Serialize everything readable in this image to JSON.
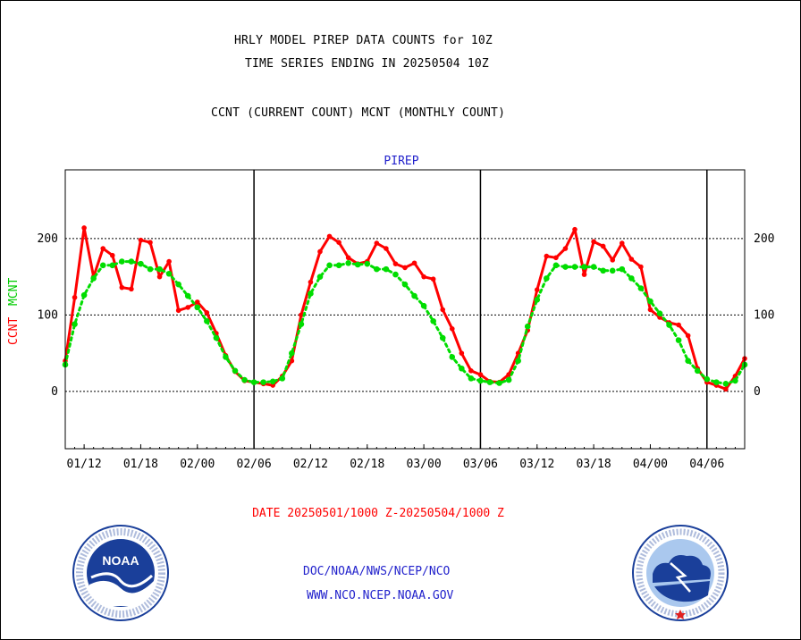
{
  "header": {
    "title_line1": "HRLY MODEL PIREP DATA COUNTS for 10Z",
    "title_line2": "TIME SERIES ENDING IN 20250504 10Z",
    "title_line3": "CCNT (CURRENT COUNT) MCNT (MONTHLY COUNT)"
  },
  "chart_data": {
    "type": "line",
    "title": "PIREP",
    "ylabel_series": [
      "CCNT",
      "MCNT"
    ],
    "xlabel": "DATE 20250501/1000 Z-20250504/1000 Z",
    "x_tick_labels": [
      "01/12",
      "01/18",
      "02/00",
      "02/06",
      "02/12",
      "02/18",
      "03/00",
      "03/06",
      "03/12",
      "03/18",
      "04/00",
      "04/06"
    ],
    "x_tick_hours": [
      2,
      8,
      14,
      20,
      26,
      32,
      38,
      44,
      50,
      56,
      62,
      68
    ],
    "x_range": [
      0,
      72
    ],
    "day_boundaries_hours": [
      20,
      44,
      68
    ],
    "y_ticks": [
      0,
      100,
      200
    ],
    "ylim": [
      -75,
      290
    ],
    "grid": true,
    "colors": {
      "CCNT": "#ff0000",
      "MCNT": "#00dd00",
      "title": "#2222cc",
      "xlabel": "#ff0000"
    },
    "series": [
      {
        "name": "CCNT",
        "hours": [
          0,
          1,
          2,
          3,
          4,
          5,
          6,
          7,
          8,
          9,
          10,
          11,
          12,
          13,
          14,
          15,
          16,
          17,
          18,
          19,
          20,
          21,
          22,
          23,
          24,
          25,
          26,
          27,
          28,
          29,
          30,
          31,
          32,
          33,
          34,
          35,
          36,
          37,
          38,
          39,
          40,
          41,
          42,
          43,
          44,
          45,
          46,
          47,
          48,
          49,
          50,
          51,
          52,
          53,
          54,
          55,
          56,
          57,
          58,
          59,
          60,
          61,
          62,
          63,
          64,
          65,
          66,
          67,
          68,
          69,
          70,
          71,
          72
        ],
        "values": [
          40,
          123,
          214,
          150,
          187,
          178,
          136,
          134,
          198,
          195,
          150,
          170,
          106,
          110,
          117,
          103,
          76,
          47,
          26,
          14,
          12,
          10,
          8,
          20,
          40,
          100,
          143,
          183,
          203,
          195,
          175,
          167,
          170,
          194,
          187,
          167,
          162,
          168,
          150,
          147,
          107,
          82,
          50,
          27,
          22,
          13,
          12,
          22,
          50,
          80,
          133,
          177,
          175,
          187,
          212,
          153,
          196,
          190,
          172,
          194,
          173,
          163,
          107,
          97,
          90,
          87,
          73,
          30,
          12,
          8,
          3,
          20,
          43
        ]
      },
      {
        "name": "MCNT",
        "hours": [
          0,
          1,
          2,
          3,
          4,
          5,
          6,
          7,
          8,
          9,
          10,
          11,
          12,
          13,
          14,
          15,
          16,
          17,
          18,
          19,
          20,
          21,
          22,
          23,
          24,
          25,
          26,
          27,
          28,
          29,
          30,
          31,
          32,
          33,
          34,
          35,
          36,
          37,
          38,
          39,
          40,
          41,
          42,
          43,
          44,
          45,
          46,
          47,
          48,
          49,
          50,
          51,
          52,
          53,
          54,
          55,
          56,
          57,
          58,
          59,
          60,
          61,
          62,
          63,
          64,
          65,
          66,
          67,
          68,
          69,
          70,
          71,
          72
        ],
        "values": [
          35,
          88,
          126,
          148,
          165,
          165,
          170,
          170,
          167,
          160,
          160,
          154,
          140,
          125,
          110,
          92,
          70,
          45,
          27,
          15,
          12,
          12,
          13,
          17,
          50,
          88,
          128,
          150,
          165,
          165,
          168,
          166,
          167,
          160,
          160,
          153,
          140,
          125,
          112,
          92,
          70,
          45,
          30,
          17,
          14,
          12,
          11,
          15,
          40,
          85,
          120,
          148,
          165,
          163,
          163,
          163,
          163,
          158,
          158,
          160,
          148,
          135,
          118,
          102,
          87,
          67,
          40,
          27,
          16,
          12,
          10,
          14,
          35
        ]
      }
    ]
  },
  "footer": {
    "agency_line": "DOC/NOAA/NWS/NCEP/NCO",
    "website": "WWW.NCO.NCEP.NOAA.GOV"
  },
  "logos": {
    "noaa_text": "NOAA",
    "noaa_ring_text": "NATIONAL OCEANIC AND ATMOSPHERIC ADMINISTRATION · U.S. DEPARTMENT OF COMMERCE",
    "nws_ring_text": "NATIONAL WEATHER SERVICE"
  }
}
